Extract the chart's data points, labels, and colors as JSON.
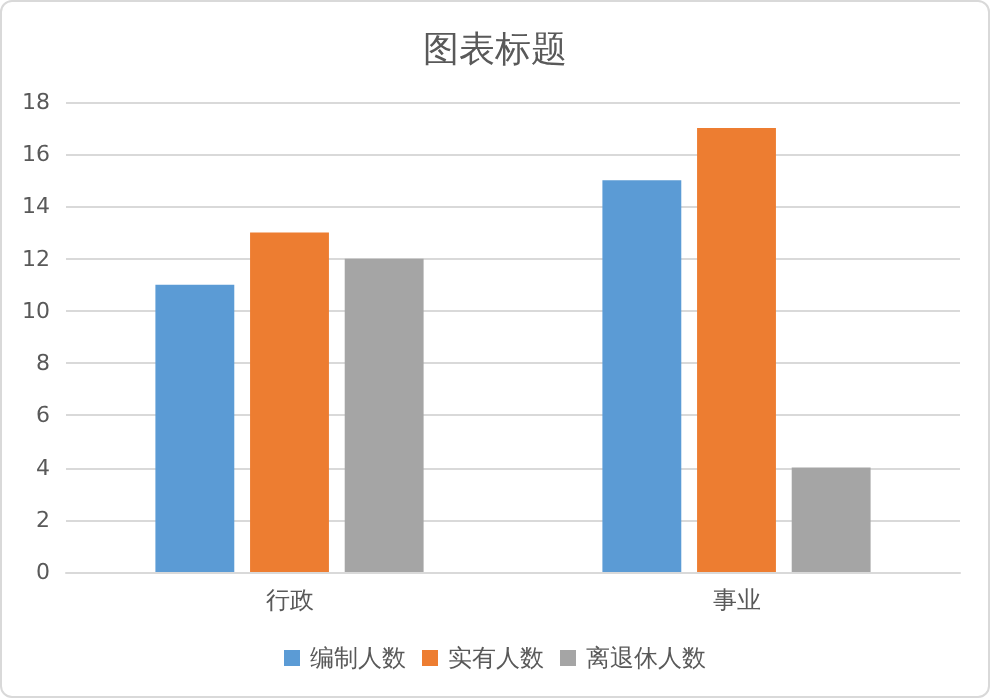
{
  "chart_data": {
    "type": "bar",
    "title": "图表标题",
    "categories": [
      "行政",
      "事业"
    ],
    "series": [
      {
        "name": "编制人数",
        "color": "#5b9bd5",
        "values": [
          11,
          15
        ]
      },
      {
        "name": "实有人数",
        "color": "#ed7d31",
        "values": [
          13,
          17
        ]
      },
      {
        "name": "离退休人数",
        "color": "#a5a5a5",
        "values": [
          12,
          4
        ]
      }
    ],
    "ylim": [
      0,
      18
    ],
    "yticks": [
      0,
      2,
      4,
      6,
      8,
      10,
      12,
      14,
      16,
      18
    ],
    "grid": "y",
    "legend": "bottom"
  }
}
